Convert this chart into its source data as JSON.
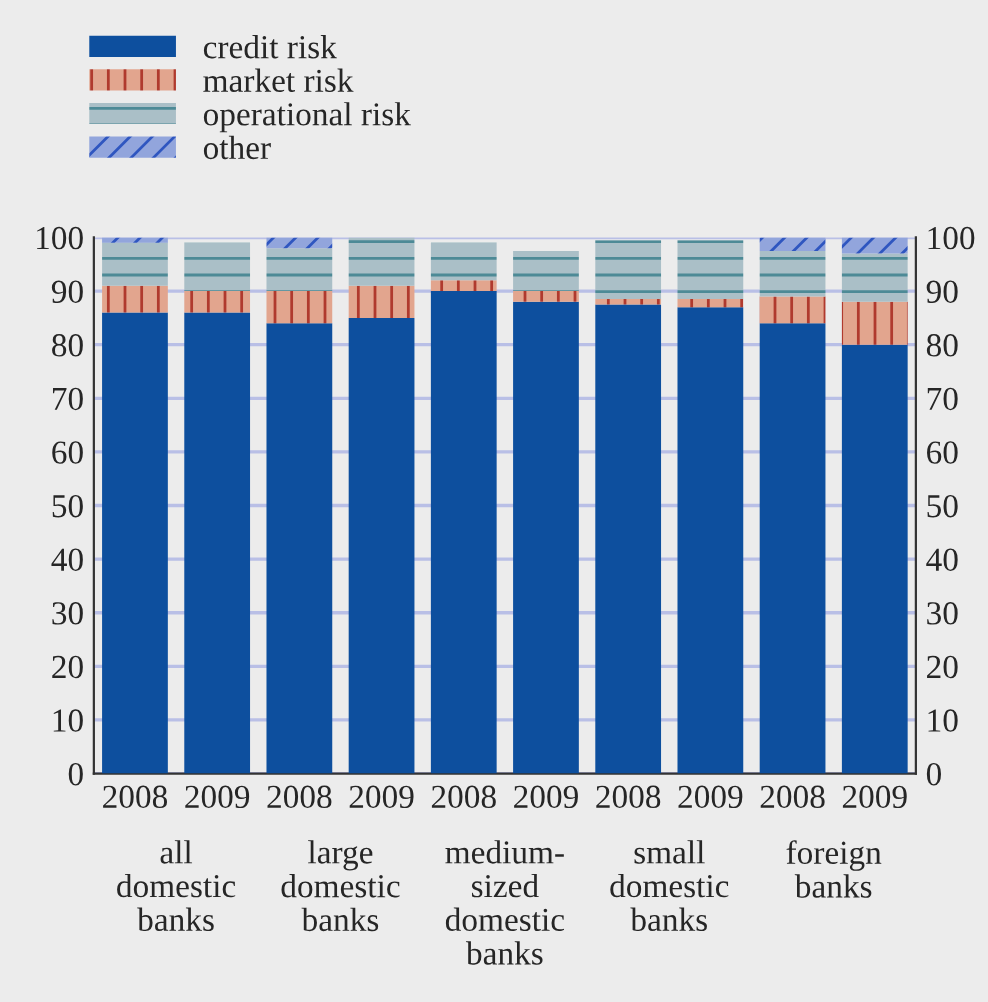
{
  "chart_data": {
    "type": "bar",
    "stacked": true,
    "categories": [
      "2008",
      "2009",
      "2008",
      "2009",
      "2008",
      "2009",
      "2008",
      "2009",
      "2008",
      "2009"
    ],
    "series": [
      {
        "name": "credit risk",
        "color": "#0d4f9e",
        "values": [
          86,
          86,
          84,
          85,
          90,
          88,
          87.5,
          87,
          84,
          80
        ]
      },
      {
        "name": "market risk",
        "color": "#e2a58e",
        "values": [
          5,
          4,
          6,
          6,
          2,
          2,
          1,
          1.5,
          5,
          8
        ]
      },
      {
        "name": "operational risk",
        "color": "#aabfc7",
        "values": [
          8,
          9,
          8,
          9,
          7,
          7.5,
          11,
          11,
          8.5,
          9
        ]
      },
      {
        "name": "other",
        "color": "#92a5dc",
        "values": [
          1,
          0,
          2,
          0,
          0,
          0,
          0,
          0,
          2.5,
          3
        ]
      }
    ],
    "ylim": [
      0,
      100
    ],
    "yticks": [
      0,
      10,
      20,
      30,
      40,
      50,
      60,
      70,
      80,
      90,
      100
    ],
    "y2lim": [
      0,
      100
    ],
    "y2ticks": [
      0,
      10,
      20,
      30,
      40,
      50,
      60,
      70,
      80,
      90,
      100
    ],
    "annotations": [
      "all\ndomestic\nbanks",
      "large\ndomestic\nbanks",
      "medium-\nsized\ndomestic\nbanks",
      "small\ndomestic\nbanks",
      "foreign\nbanks"
    ],
    "grid": true,
    "legend": "top left"
  }
}
